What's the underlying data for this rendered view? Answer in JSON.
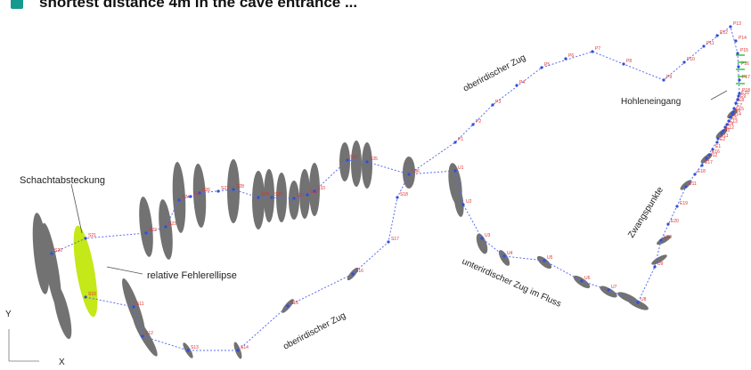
{
  "header": {
    "title": "shortest distance 4m in the cave entrance ...",
    "accent": "#169a8e"
  },
  "colors": {
    "traverse": "#5a6cf0",
    "station": "#2f4fd8",
    "stationLabel": "#e03030",
    "ellipse": "#6b6b6b",
    "highlight": "#c4e818",
    "green": "#3cc63c"
  },
  "labels": {
    "schachtabsteckung": "Schachtabsteckung",
    "fehlerellipse": "relative Fehlerellipse",
    "hoehleneingang": "Hohleneingang",
    "zug_upper_right": "oberirdischer Zug",
    "zug_lower_left": "oberirdischer Zug",
    "zug_tunnel": "unterirdischer Zug im Fluss",
    "zwangspunkte": "Zwangspunkte"
  },
  "stations": {
    "upperLeft": [
      "S20",
      "S21",
      "S22",
      "S23",
      "S24",
      "S25",
      "S26",
      "S27",
      "S28",
      "S29",
      "S30",
      "S31",
      "S32",
      "S33",
      "S34",
      "S35",
      "S36"
    ],
    "ring": [
      "P1",
      "P2",
      "P3",
      "P4",
      "P5",
      "P6",
      "P7",
      "P8",
      "P9",
      "P10",
      "P11",
      "P12",
      "P13",
      "P14",
      "P15",
      "P16",
      "P17",
      "P18"
    ],
    "lower": [
      "S10",
      "S11",
      "S12",
      "S13",
      "S14",
      "S15",
      "S16",
      "S17",
      "S18"
    ],
    "right": [
      "U1",
      "U2",
      "U3",
      "U4",
      "U5",
      "U6",
      "U7",
      "U8",
      "U9",
      "U10",
      "U11",
      "U12"
    ],
    "entrance": [
      "E1",
      "E2",
      "E3",
      "E4",
      "E5",
      "E6",
      "E7",
      "E8",
      "E9",
      "E10",
      "E11",
      "E12",
      "E13",
      "E14",
      "E15",
      "E16",
      "E17",
      "E18",
      "E19",
      "E20"
    ]
  },
  "axis": {
    "y": "Y",
    "x": "X"
  }
}
